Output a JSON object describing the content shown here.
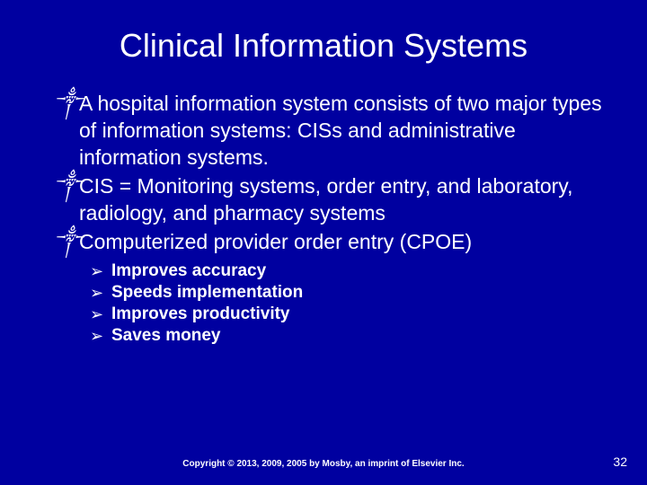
{
  "slide": {
    "background_color": "#0000a0",
    "text_color": "#ffffff",
    "title": "Clinical Information Systems",
    "title_fontsize": 36,
    "body_fontsize": 23,
    "sub_fontsize": 19,
    "main_bullet_glyph": "༒",
    "sub_bullet_glyph": "➢",
    "bullets": [
      {
        "text": "A hospital information system consists of two major types of information systems: CISs and administrative information systems."
      },
      {
        "text": "CIS = Monitoring systems, order entry, and laboratory, radiology, and pharmacy systems"
      },
      {
        "text": "Computerized provider order entry (CPOE)",
        "sub": [
          "Improves accuracy",
          "Speeds implementation",
          "Improves productivity",
          "Saves money"
        ]
      }
    ],
    "copyright": "Copyright © 2013, 2009, 2005 by Mosby, an imprint of Elsevier Inc.",
    "page_number": "32"
  }
}
